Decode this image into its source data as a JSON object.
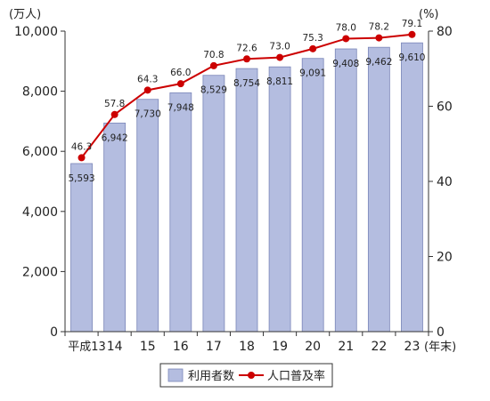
{
  "chart_data": {
    "type": "bar",
    "categories": [
      "平成13",
      "14",
      "15",
      "16",
      "17",
      "18",
      "19",
      "20",
      "21",
      "22",
      "23"
    ],
    "x_unit": "(年末)",
    "series": [
      {
        "name": "利用者数",
        "type": "bar",
        "axis": "left",
        "color": "#b4bde0",
        "stroke": "#7a86b8",
        "values": [
          5593,
          6942,
          7730,
          7948,
          8529,
          8754,
          8811,
          9091,
          9408,
          9462,
          9610
        ],
        "labels": [
          "5,593",
          "6,942",
          "7,730",
          "7,948",
          "8,529",
          "8,754",
          "8,811",
          "9,091",
          "9,408",
          "9,462",
          "9,610"
        ]
      },
      {
        "name": "人口普及率",
        "type": "line",
        "axis": "right",
        "color": "#cc0000",
        "values": [
          46.3,
          57.8,
          64.3,
          66.0,
          70.8,
          72.6,
          73.0,
          75.3,
          78.0,
          78.2,
          79.1
        ],
        "labels": [
          "46.3",
          "57.8",
          "64.3",
          "66.0",
          "70.8",
          "72.6",
          "73.0",
          "75.3",
          "78.0",
          "78.2",
          "79.1"
        ]
      }
    ],
    "y_left": {
      "unit": "(万人)",
      "ylim": [
        0,
        10000
      ],
      "ticks": [
        0,
        2000,
        4000,
        6000,
        8000,
        10000
      ],
      "tick_labels": [
        "0",
        "2,000",
        "4,000",
        "6,000",
        "8,000",
        "10,000"
      ]
    },
    "y_right": {
      "unit": "(%)",
      "ylim": [
        0,
        80
      ],
      "ticks": [
        0,
        20,
        40,
        60,
        80
      ],
      "tick_labels": [
        "0",
        "20",
        "40",
        "60",
        "80"
      ]
    },
    "grid": false,
    "legend": {
      "position": "bottom-center",
      "items": [
        "利用者数",
        "人口普及率"
      ]
    }
  }
}
